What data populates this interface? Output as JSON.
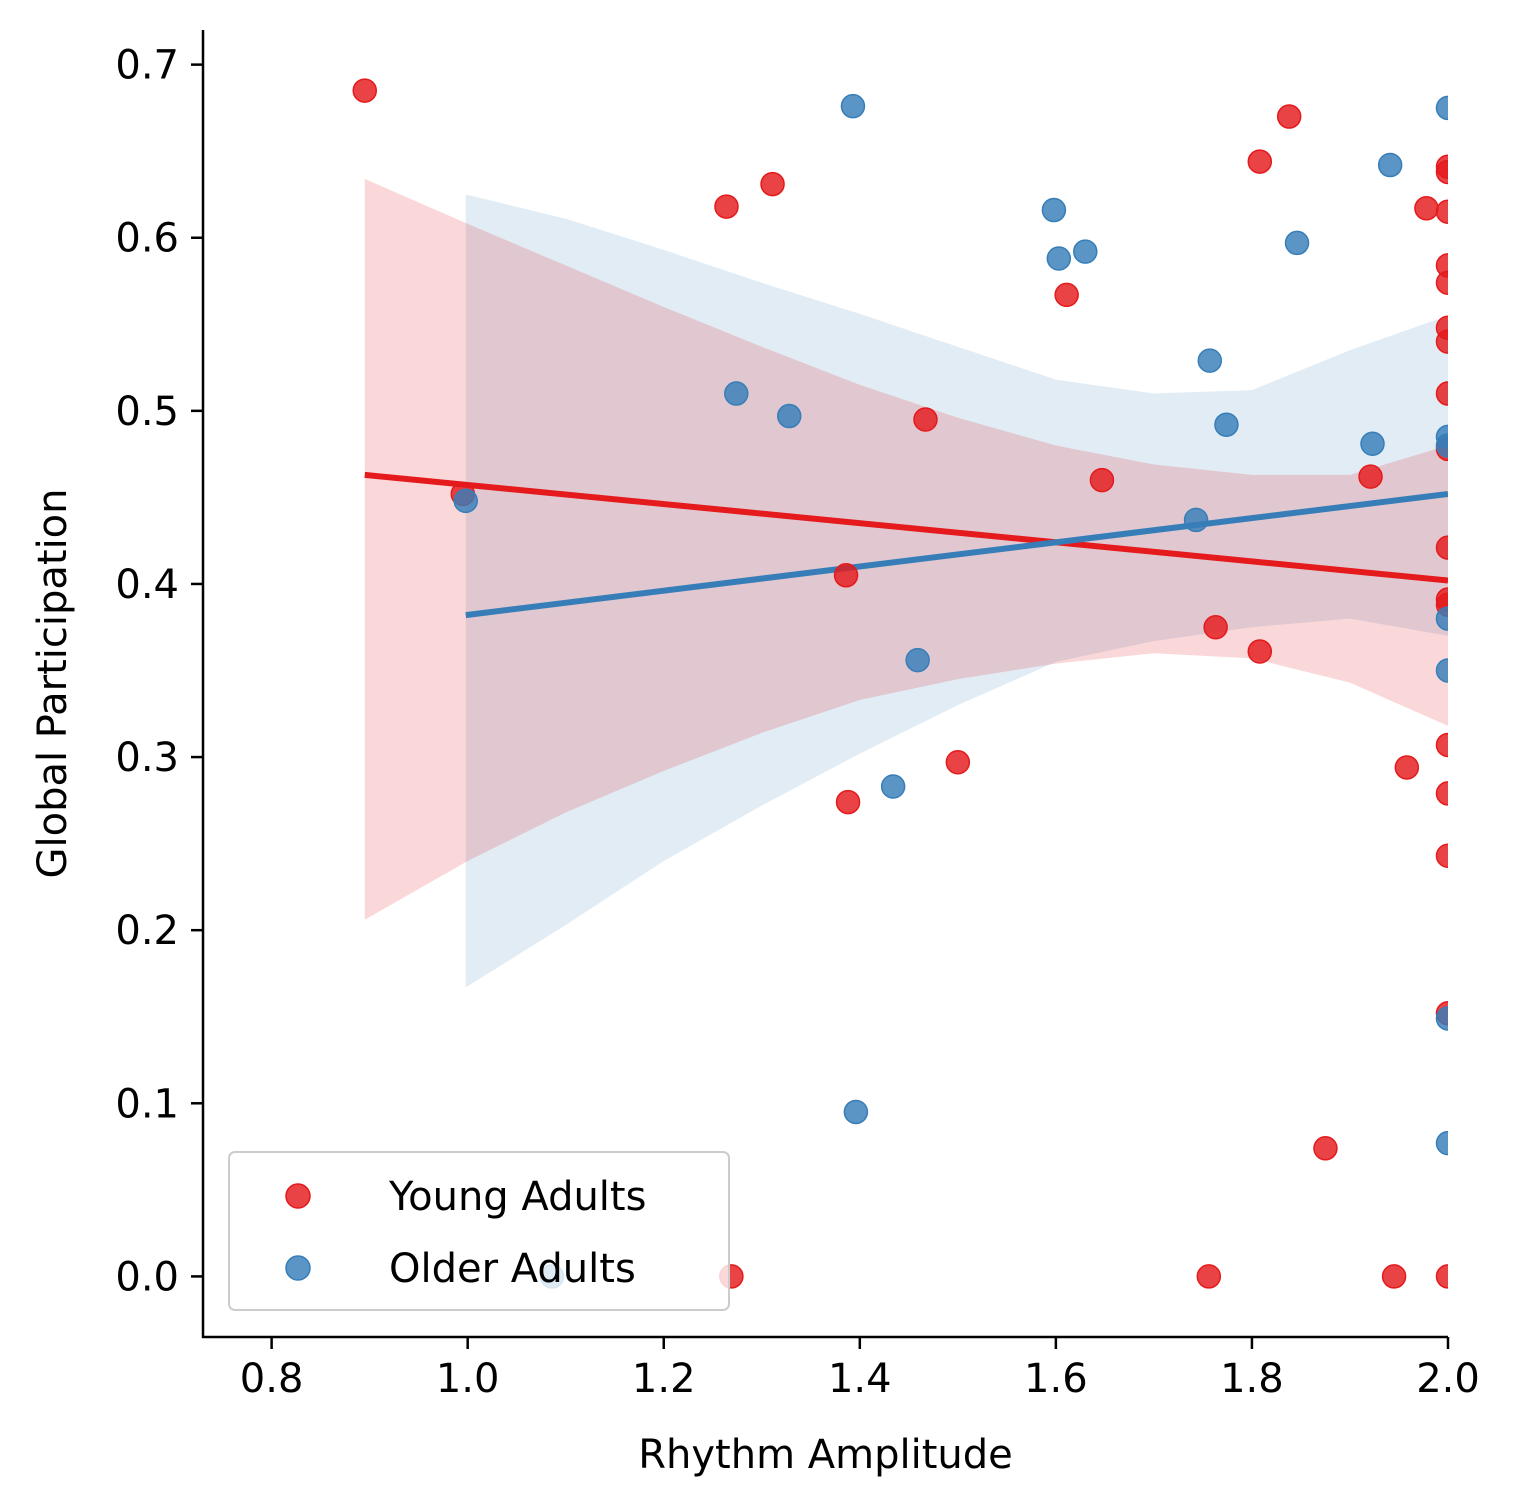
{
  "chart_data": {
    "type": "scatter",
    "xlabel": "Rhythm Amplitude",
    "ylabel": "Global Participation",
    "xlim": [
      0.73,
      2.0
    ],
    "ylim": [
      -0.035,
      0.72
    ],
    "xticks": [
      "0.8",
      "1.0",
      "1.2",
      "1.4",
      "1.6",
      "1.8",
      "2.0"
    ],
    "yticks": [
      "0.0",
      "0.1",
      "0.2",
      "0.3",
      "0.4",
      "0.5",
      "0.6",
      "0.7"
    ],
    "xtick_values": [
      0.8,
      1.0,
      1.2,
      1.4,
      1.6,
      1.8,
      2.0
    ],
    "ytick_values": [
      0.0,
      0.1,
      0.2,
      0.3,
      0.4,
      0.5,
      0.6,
      0.7
    ],
    "grid": false,
    "legend_position": "lower-left",
    "series": [
      {
        "name": "Young Adults",
        "color": "#e41a1c",
        "points": [
          [
            0.895,
            0.685
          ],
          [
            0.995,
            0.452
          ],
          [
            1.264,
            0.618
          ],
          [
            1.311,
            0.631
          ],
          [
            1.269,
            0.0
          ],
          [
            1.386,
            0.405
          ],
          [
            1.388,
            0.274
          ],
          [
            1.467,
            0.495
          ],
          [
            1.5,
            0.297
          ],
          [
            1.611,
            0.567
          ],
          [
            1.647,
            0.46
          ],
          [
            1.756,
            0.0
          ],
          [
            1.763,
            0.375
          ],
          [
            1.808,
            0.644
          ],
          [
            1.808,
            0.361
          ],
          [
            1.838,
            0.67
          ],
          [
            1.875,
            0.074
          ],
          [
            1.921,
            0.462
          ],
          [
            1.945,
            0.0
          ],
          [
            1.958,
            0.294
          ],
          [
            1.978,
            0.617
          ],
          [
            2.0,
            0.641
          ],
          [
            2.0,
            0.638
          ],
          [
            2.0,
            0.615
          ],
          [
            2.0,
            0.584
          ],
          [
            2.0,
            0.574
          ],
          [
            2.0,
            0.548
          ],
          [
            2.0,
            0.54
          ],
          [
            2.0,
            0.51
          ],
          [
            2.0,
            0.478
          ],
          [
            2.0,
            0.421
          ],
          [
            2.0,
            0.391
          ],
          [
            2.0,
            0.388
          ],
          [
            2.0,
            0.307
          ],
          [
            2.0,
            0.279
          ],
          [
            2.0,
            0.243
          ],
          [
            2.0,
            0.152
          ],
          [
            2.0,
            0.0
          ]
        ],
        "fit_line": [
          [
            0.895,
            0.463
          ],
          [
            2.0,
            0.402
          ]
        ],
        "ci_upper": [
          [
            0.895,
            0.634
          ],
          [
            1.0,
            0.608
          ],
          [
            1.1,
            0.584
          ],
          [
            1.2,
            0.56
          ],
          [
            1.3,
            0.537
          ],
          [
            1.4,
            0.515
          ],
          [
            1.5,
            0.496
          ],
          [
            1.6,
            0.48
          ],
          [
            1.7,
            0.469
          ],
          [
            1.8,
            0.463
          ],
          [
            1.9,
            0.463
          ],
          [
            2.0,
            0.48
          ]
        ],
        "ci_lower": [
          [
            0.895,
            0.206
          ],
          [
            1.0,
            0.24
          ],
          [
            1.1,
            0.268
          ],
          [
            1.2,
            0.292
          ],
          [
            1.3,
            0.314
          ],
          [
            1.4,
            0.333
          ],
          [
            1.5,
            0.345
          ],
          [
            1.6,
            0.354
          ],
          [
            1.7,
            0.36
          ],
          [
            1.8,
            0.357
          ],
          [
            1.9,
            0.343
          ],
          [
            2.0,
            0.318
          ]
        ]
      },
      {
        "name": "Older Adults",
        "color": "#377eb8",
        "points": [
          [
            0.998,
            0.448
          ],
          [
            1.086,
            0.0
          ],
          [
            1.274,
            0.51
          ],
          [
            1.328,
            0.497
          ],
          [
            1.393,
            0.676
          ],
          [
            1.396,
            0.095
          ],
          [
            1.434,
            0.283
          ],
          [
            1.459,
            0.356
          ],
          [
            1.598,
            0.616
          ],
          [
            1.603,
            0.588
          ],
          [
            1.63,
            0.592
          ],
          [
            1.743,
            0.437
          ],
          [
            1.757,
            0.529
          ],
          [
            1.774,
            0.492
          ],
          [
            1.846,
            0.597
          ],
          [
            1.923,
            0.481
          ],
          [
            1.941,
            0.642
          ],
          [
            2.0,
            0.675
          ],
          [
            2.0,
            0.485
          ],
          [
            2.0,
            0.48
          ],
          [
            2.0,
            0.38
          ],
          [
            2.0,
            0.35
          ],
          [
            2.0,
            0.149
          ],
          [
            2.0,
            0.077
          ]
        ],
        "fit_line": [
          [
            0.998,
            0.382
          ],
          [
            2.0,
            0.452
          ]
        ],
        "ci_upper": [
          [
            0.998,
            0.625
          ],
          [
            1.1,
            0.611
          ],
          [
            1.2,
            0.593
          ],
          [
            1.3,
            0.574
          ],
          [
            1.4,
            0.556
          ],
          [
            1.5,
            0.537
          ],
          [
            1.6,
            0.518
          ],
          [
            1.7,
            0.51
          ],
          [
            1.8,
            0.512
          ],
          [
            1.9,
            0.535
          ],
          [
            2.0,
            0.555
          ]
        ],
        "ci_lower": [
          [
            0.998,
            0.167
          ],
          [
            1.1,
            0.203
          ],
          [
            1.2,
            0.24
          ],
          [
            1.3,
            0.272
          ],
          [
            1.4,
            0.302
          ],
          [
            1.5,
            0.33
          ],
          [
            1.6,
            0.355
          ],
          [
            1.7,
            0.367
          ],
          [
            1.8,
            0.375
          ],
          [
            1.9,
            0.38
          ],
          [
            2.0,
            0.37
          ]
        ]
      }
    ]
  }
}
